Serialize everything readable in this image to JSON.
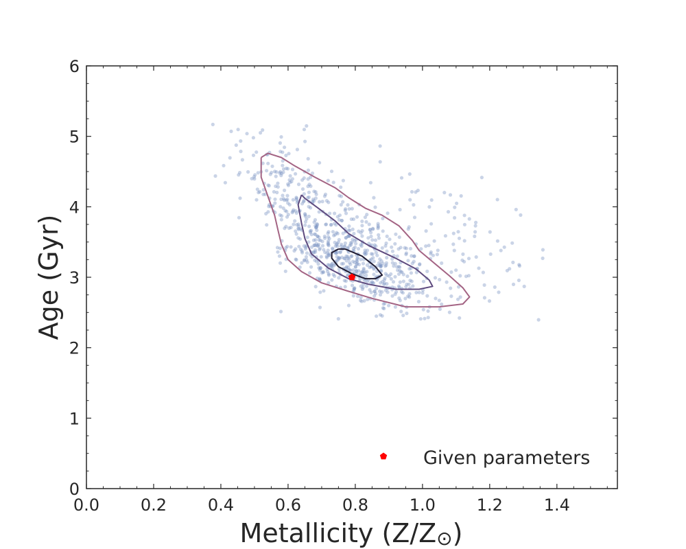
{
  "chart_data": {
    "type": "scatter",
    "xlabel": "Metallicity (Z/Z",
    "xlabel_symbol": "⊙",
    "xlabel_close": ")",
    "ylabel": "Age (Gyr)",
    "xlim": [
      0.0,
      1.58
    ],
    "ylim": [
      0,
      6
    ],
    "x_ticks": [
      "0.0",
      "0.2",
      "0.4",
      "0.6",
      "0.8",
      "1.0",
      "1.2",
      "1.4"
    ],
    "y_ticks": [
      "0",
      "1",
      "2",
      "3",
      "4",
      "5",
      "6"
    ],
    "grid": false,
    "legend": {
      "position": "bottom-right",
      "entries": [
        {
          "label": "Given parameters",
          "marker": "pentagon",
          "color": "#ff0000"
        }
      ]
    },
    "colors": {
      "samples": "#7a94c4",
      "contour_outer": "#a36383",
      "contour_mid": "#5e4a7e",
      "contour_inner": "#1e1a30",
      "given": "#ff0000"
    },
    "given_point": {
      "x": 0.79,
      "y": 3.0
    },
    "samples": {
      "count": 900,
      "description_units": "data",
      "clusters": [
        {
          "n": 420,
          "cx": 0.78,
          "cy": 3.4,
          "sx": 0.13,
          "sy": 0.55,
          "rho": -0.75
        },
        {
          "n": 200,
          "cx": 0.78,
          "cy": 3.15,
          "sx": 0.09,
          "sy": 0.25,
          "rho": -0.6
        },
        {
          "n": 160,
          "cx": 1.05,
          "cy": 3.3,
          "sx": 0.17,
          "sy": 0.6,
          "rho": -0.3
        },
        {
          "n": 120,
          "cx": 0.58,
          "cy": 4.4,
          "sx": 0.08,
          "sy": 0.4,
          "rho": -0.4
        }
      ]
    },
    "contours": [
      {
        "level": "outer",
        "points": [
          [
            0.52,
            4.7
          ],
          [
            0.54,
            4.76
          ],
          [
            0.58,
            4.7
          ],
          [
            0.62,
            4.58
          ],
          [
            0.68,
            4.42
          ],
          [
            0.74,
            4.27
          ],
          [
            0.78,
            4.13
          ],
          [
            0.83,
            3.98
          ],
          [
            0.88,
            3.88
          ],
          [
            0.93,
            3.73
          ],
          [
            0.97,
            3.52
          ],
          [
            0.99,
            3.38
          ],
          [
            1.03,
            3.22
          ],
          [
            1.08,
            3.02
          ],
          [
            1.12,
            2.85
          ],
          [
            1.14,
            2.72
          ],
          [
            1.12,
            2.62
          ],
          [
            1.05,
            2.58
          ],
          [
            0.95,
            2.58
          ],
          [
            0.85,
            2.7
          ],
          [
            0.78,
            2.8
          ],
          [
            0.7,
            2.92
          ],
          [
            0.64,
            3.08
          ],
          [
            0.6,
            3.25
          ],
          [
            0.58,
            3.47
          ],
          [
            0.57,
            3.67
          ],
          [
            0.56,
            3.88
          ],
          [
            0.54,
            4.15
          ],
          [
            0.52,
            4.42
          ],
          [
            0.52,
            4.7
          ]
        ]
      },
      {
        "level": "mid",
        "points": [
          [
            0.64,
            4.17
          ],
          [
            0.65,
            4.12
          ],
          [
            0.69,
            3.98
          ],
          [
            0.74,
            3.8
          ],
          [
            0.78,
            3.62
          ],
          [
            0.84,
            3.45
          ],
          [
            0.92,
            3.27
          ],
          [
            0.98,
            3.12
          ],
          [
            1.02,
            2.96
          ],
          [
            1.03,
            2.87
          ],
          [
            0.99,
            2.83
          ],
          [
            0.92,
            2.83
          ],
          [
            0.84,
            2.9
          ],
          [
            0.78,
            2.98
          ],
          [
            0.72,
            3.13
          ],
          [
            0.67,
            3.33
          ],
          [
            0.65,
            3.55
          ],
          [
            0.64,
            3.77
          ],
          [
            0.63,
            4.03
          ],
          [
            0.64,
            4.17
          ]
        ]
      },
      {
        "level": "inner",
        "points": [
          [
            0.75,
            3.4
          ],
          [
            0.77,
            3.4
          ],
          [
            0.82,
            3.3
          ],
          [
            0.86,
            3.15
          ],
          [
            0.88,
            3.03
          ],
          [
            0.86,
            2.98
          ],
          [
            0.83,
            2.98
          ],
          [
            0.79,
            3.05
          ],
          [
            0.75,
            3.15
          ],
          [
            0.73,
            3.27
          ],
          [
            0.73,
            3.35
          ],
          [
            0.75,
            3.4
          ]
        ]
      }
    ]
  }
}
